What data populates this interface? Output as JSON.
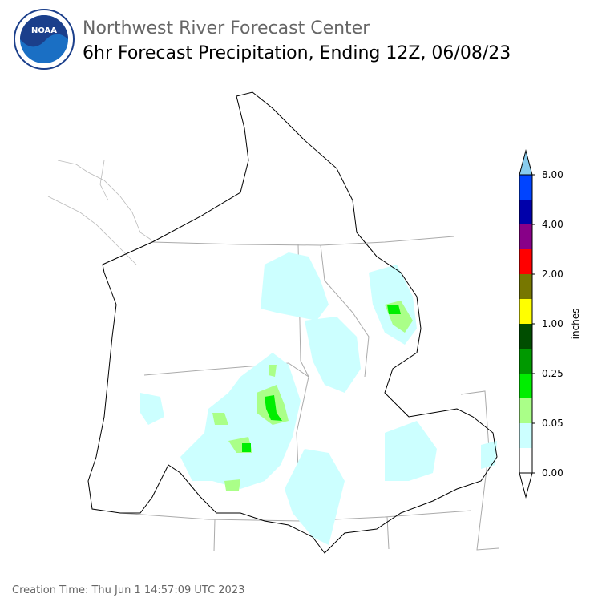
{
  "header": {
    "logo_text": "NOAA",
    "title": "Northwest River Forecast Center",
    "subtitle": "6hr Forecast Precipitation, Ending 12Z, 06/08/23"
  },
  "legend": {
    "label": "inches",
    "ticks": [
      "0.00",
      "0.05",
      "0.25",
      "1.00",
      "2.00",
      "4.00",
      "8.00"
    ],
    "colors": [
      "#ffffff",
      "#ccffff",
      "#aaff88",
      "#00ee00",
      "#009900",
      "#004d00",
      "#ffff00",
      "#777700",
      "#ff0000",
      "#880088",
      "#0000aa",
      "#0044ff"
    ],
    "under_color": "#ffffff",
    "over_color": "#88ccee"
  },
  "footer": {
    "creation_time": "Creation Time: Thu Jun 1 14:57:09 UTC 2023"
  }
}
